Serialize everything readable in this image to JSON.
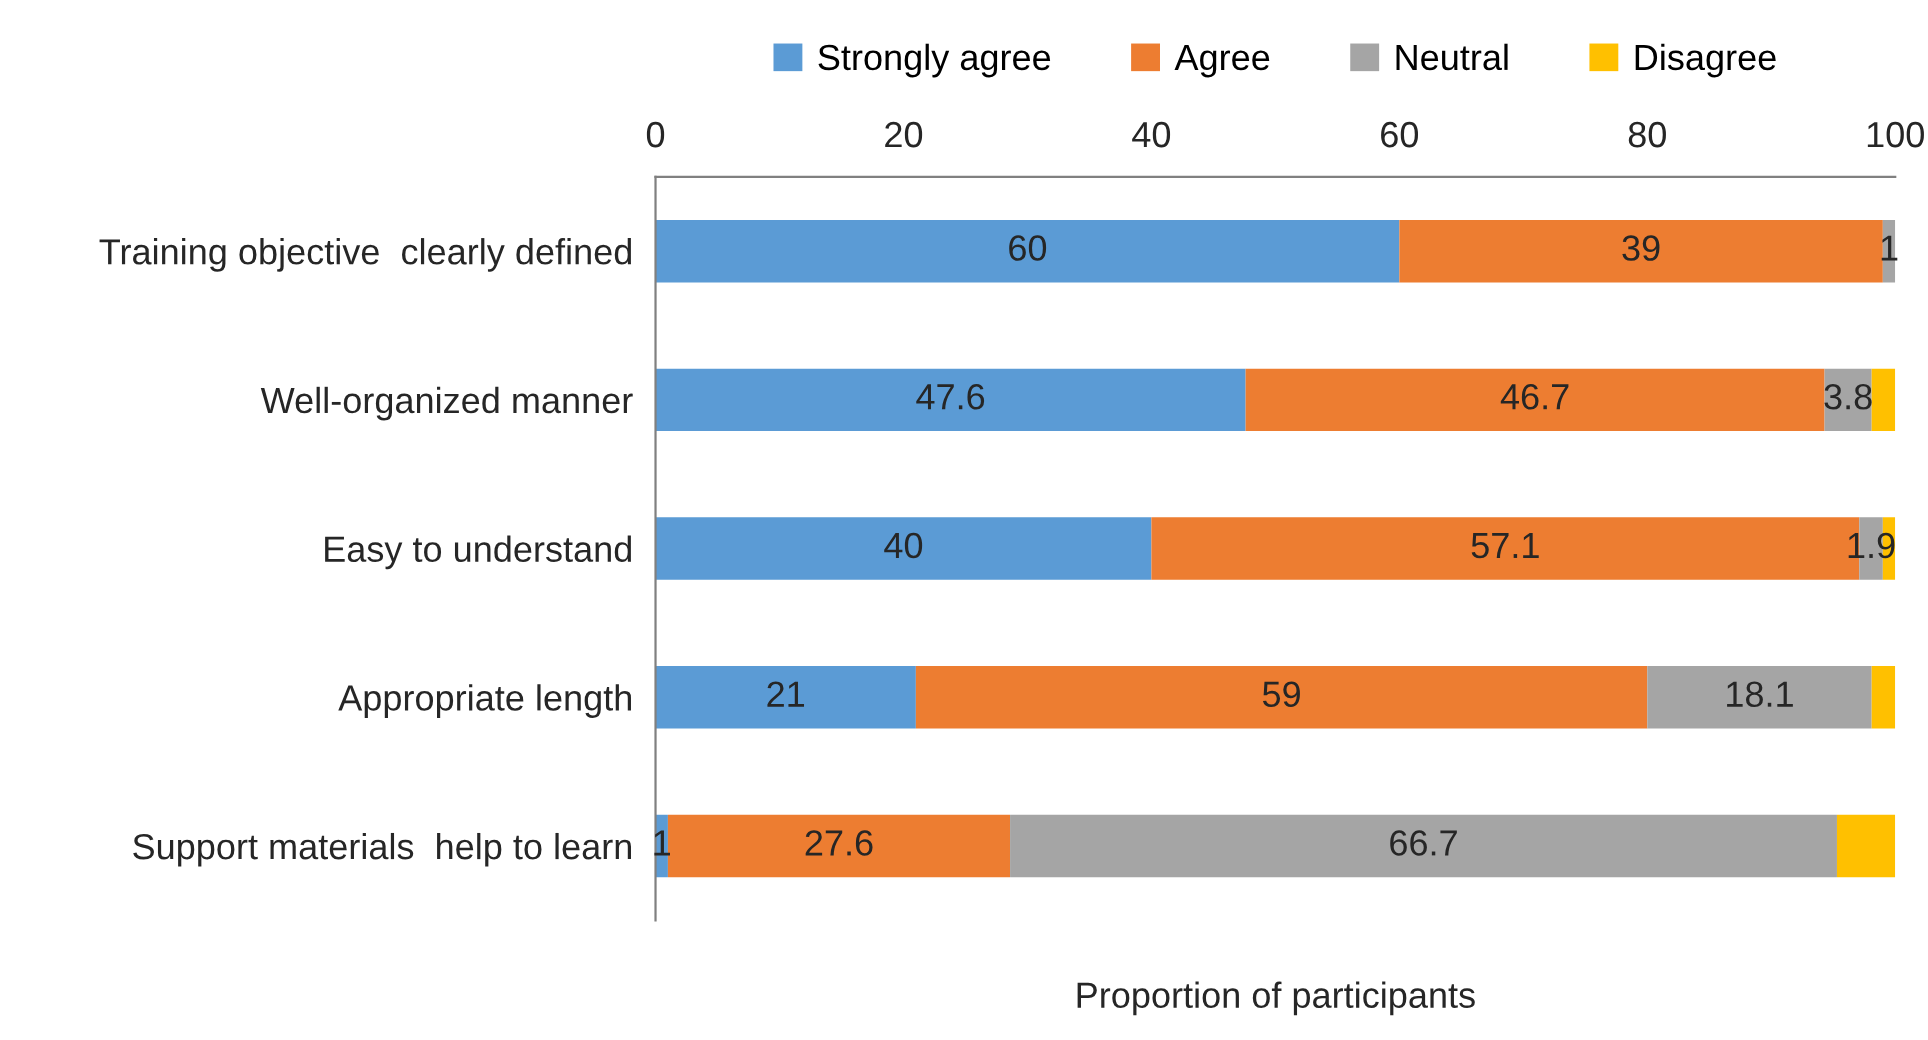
{
  "chart_data": {
    "type": "bar",
    "orientation": "horizontal",
    "stacked": true,
    "xlabel": "Proportion of participants",
    "categories": [
      "Training objective  clearly defined",
      "Well-organized manner",
      "Easy to understand",
      "Appropriate length",
      "Support materials  help to learn"
    ],
    "series": [
      {
        "name": "Strongly agree",
        "color": "#5b9bd5",
        "values": [
          60,
          47.6,
          40,
          21,
          1
        ],
        "value_labels": [
          "60",
          "47.6",
          "40",
          "21",
          "1"
        ]
      },
      {
        "name": "Agree",
        "color": "#ed7d31",
        "values": [
          39,
          46.7,
          57.1,
          59,
          27.6
        ],
        "value_labels": [
          "39",
          "46.7",
          "57.1",
          "59",
          "27.6"
        ]
      },
      {
        "name": "Neutral",
        "color": "#a5a5a5",
        "values": [
          1,
          3.8,
          1.9,
          18.1,
          66.7
        ],
        "value_labels": [
          "1",
          "3.8",
          "1.9",
          "18.1",
          "66.7"
        ]
      },
      {
        "name": "Disagree",
        "color": "#ffc000",
        "values": [
          0,
          1.9,
          1.0,
          1.9,
          4.7
        ],
        "value_labels": [
          null,
          null,
          null,
          null,
          null
        ]
      }
    ],
    "xlim": [
      0,
      100
    ],
    "xticks": [
      0,
      20,
      40,
      60,
      80,
      100
    ],
    "grid": false,
    "legend": "top"
  }
}
